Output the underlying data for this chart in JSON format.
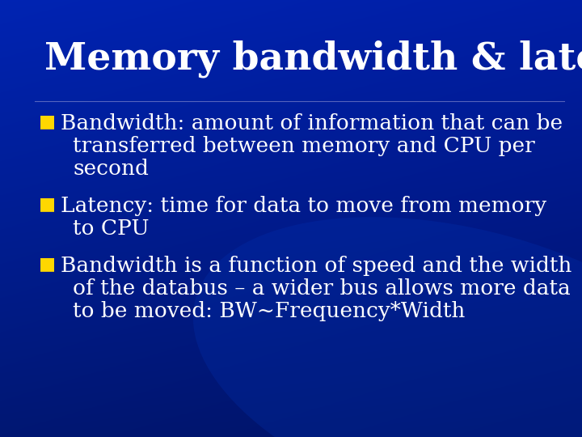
{
  "title": "Memory bandwidth & latency",
  "title_color": "#FFFFFF",
  "title_fontsize": 34,
  "bullet_color": "#FFD700",
  "text_color": "#FFFFFF",
  "text_fontsize": 19,
  "bg_dark": "#00157a",
  "bg_mid": "#0020a0",
  "bg_light": "#0030c0",
  "bullets": [
    {
      "lines": [
        "Bandwidth: amount of information that can be",
        "transferred between memory and CPU per",
        "second"
      ]
    },
    {
      "lines": [
        "Latency: time for data to move from memory",
        "to CPU"
      ]
    },
    {
      "lines": [
        "Bandwidth is a function of speed and the width",
        "of the databus – a wider bus allows more data",
        "to be moved: BW~Frequency*Width"
      ]
    }
  ]
}
